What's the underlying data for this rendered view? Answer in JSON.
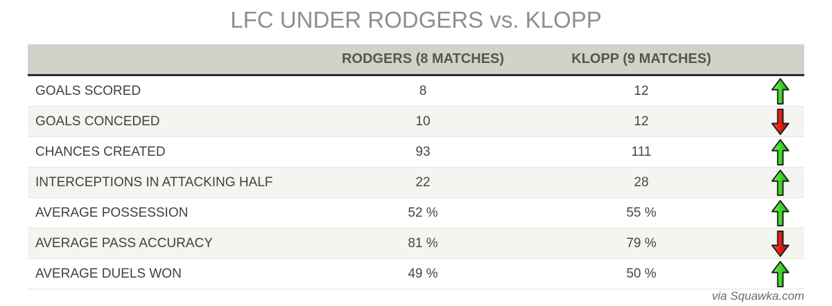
{
  "title": "LFC UNDER RODGERS vs. KLOPP",
  "chart_data": {
    "type": "table",
    "title": "LFC UNDER RODGERS vs. KLOPP",
    "columns": [
      "",
      "RODGERS (8 MATCHES)",
      "KLOPP (9 MATCHES)",
      ""
    ],
    "rows": [
      {
        "metric": "GOALS SCORED",
        "rodgers": "8",
        "klopp": "12",
        "trend": "up"
      },
      {
        "metric": "GOALS CONCEDED",
        "rodgers": "10",
        "klopp": "12",
        "trend": "down"
      },
      {
        "metric": "CHANCES CREATED",
        "rodgers": "93",
        "klopp": "111",
        "trend": "up"
      },
      {
        "metric": "INTERCEPTIONS IN ATTACKING HALF",
        "rodgers": "22",
        "klopp": "28",
        "trend": "up"
      },
      {
        "metric": "AVERAGE POSSESSION",
        "rodgers": "52 %",
        "klopp": "55 %",
        "trend": "up"
      },
      {
        "metric": "AVERAGE PASS ACCURACY",
        "rodgers": "81 %",
        "klopp": "79 %",
        "trend": "down"
      },
      {
        "metric": "AVERAGE DUELS WON",
        "rodgers": "49 %",
        "klopp": "50 %",
        "trend": "up"
      }
    ],
    "legend": "none",
    "grid": "row-separators"
  },
  "footer": {
    "credit": "via Squawka.com"
  },
  "colors": {
    "header_bg": "#d2d2cb",
    "header_border": "#2a2a2a",
    "alt_row_bg": "#f4f4f1",
    "up_arrow": "#2ebd17",
    "down_arrow": "#d31212",
    "title_text": "#8e8e8e"
  }
}
